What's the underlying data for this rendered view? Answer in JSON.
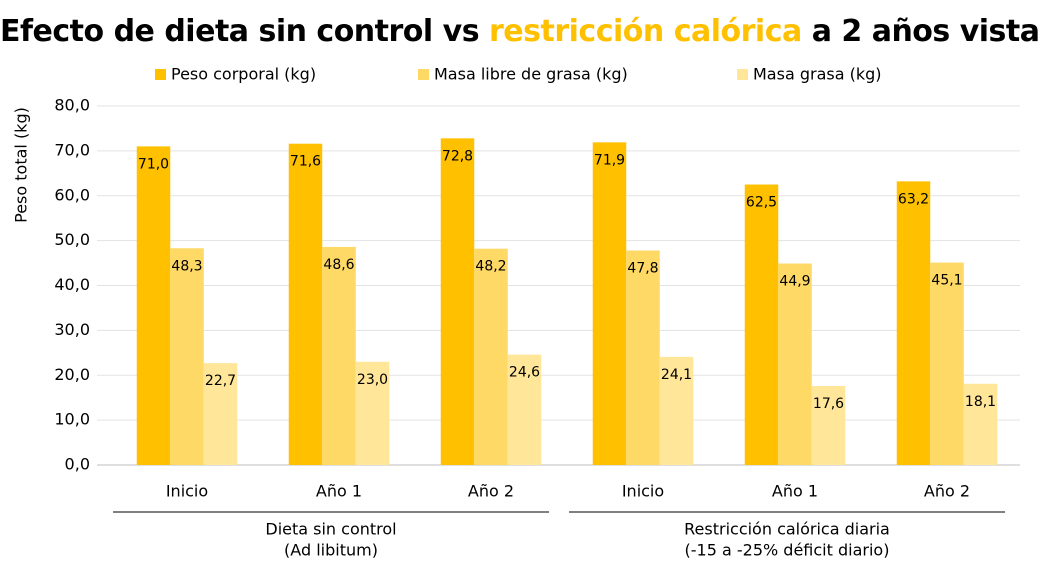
{
  "chart_data": {
    "type": "bar",
    "title": [
      "Efecto de dieta sin control vs",
      "restricción calórica",
      "a 2 años vista"
    ],
    "title_highlight_color": "#FFC000",
    "y_label": "Peso total (kg)",
    "groups": [
      {
        "lines": [
          "Dieta sin control",
          "(Ad libitum)"
        ],
        "categories": [
          "Inicio",
          "Año 1",
          "Año 2"
        ]
      },
      {
        "lines": [
          "Restricción calórica diaria",
          "(-15 a -25% déficit diario)"
        ],
        "categories": [
          "Inicio",
          "Año 1",
          "Año 2"
        ]
      }
    ],
    "series": [
      {
        "name": "Peso corporal (kg)",
        "color": "#FFC000",
        "values": [
          71.0,
          71.6,
          72.8,
          71.9,
          62.5,
          63.2
        ],
        "value_labels": [
          "71,0",
          "71,6",
          "72,8",
          "71,9",
          "62,5",
          "63,2"
        ]
      },
      {
        "name": "Masa libre de grasa (kg)",
        "color": "#FFD966",
        "values": [
          48.3,
          48.6,
          48.2,
          47.8,
          44.9,
          45.1
        ],
        "value_labels": [
          "48,3",
          "48,6",
          "48,2",
          "47,8",
          "44,9",
          "45,1"
        ]
      },
      {
        "name": "Masa grasa (kg)",
        "color": "#FFE699",
        "values": [
          22.7,
          23.0,
          24.6,
          24.1,
          17.6,
          18.1
        ],
        "value_labels": [
          "22,7",
          "23,0",
          "24,6",
          "24,1",
          "17,6",
          "18,1"
        ]
      }
    ],
    "ylim": [
      0,
      80
    ],
    "yticks": [
      {
        "value": 0,
        "label": "0,0"
      },
      {
        "value": 10,
        "label": "10,0"
      },
      {
        "value": 20,
        "label": "20,0"
      },
      {
        "value": 30,
        "label": "30,0"
      },
      {
        "value": 40,
        "label": "40,0"
      },
      {
        "value": 50,
        "label": "50,0"
      },
      {
        "value": 60,
        "label": "60,0"
      },
      {
        "value": 70,
        "label": "70,0"
      },
      {
        "value": 80,
        "label": "80,0"
      }
    ],
    "grid": true,
    "legend": "top"
  }
}
